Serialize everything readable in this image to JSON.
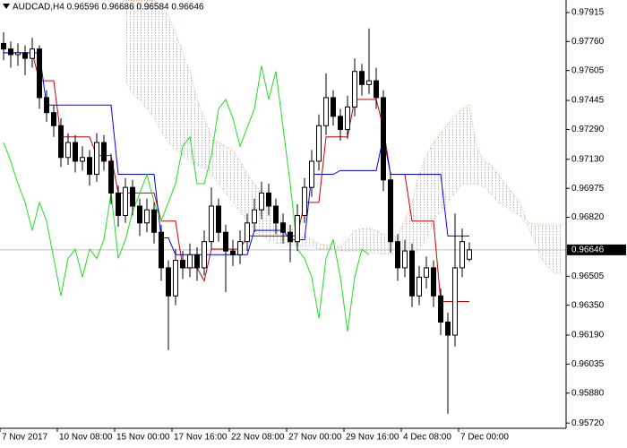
{
  "chart_data": {
    "type": "candlestick",
    "title": "AUDCAD,H4  0.96596 0.96686 0.96584 0.96646",
    "ylim": [
      0.95692,
      0.97982
    ],
    "yticks": [
      {
        "value": 0.97915,
        "label": "0.97915"
      },
      {
        "value": 0.9776,
        "label": "0.97760"
      },
      0.97605,
      0.97445,
      {
        "value": 0.9729,
        "label": "0.97290"
      },
      {
        "value": 0.9713,
        "label": "0.97130"
      },
      0.96975,
      {
        "value": 0.9682,
        "label": "0.96820"
      },
      0.96505,
      {
        "value": 0.9635,
        "label": "0.96350"
      },
      {
        "value": 0.9619,
        "label": "0.96190"
      },
      0.96035,
      {
        "value": 0.9588,
        "label": "0.95880"
      },
      {
        "value": 0.9572,
        "label": "0.95720"
      }
    ],
    "xticks": [
      {
        "value": 0,
        "label": "7 Nov 2017"
      },
      {
        "value": 8,
        "label": "10 Nov 08:00"
      },
      {
        "value": 16,
        "label": "15 Nov 00:00"
      },
      {
        "value": 24,
        "label": "17 Nov 16:00"
      },
      {
        "value": 32,
        "label": "22 Nov 08:00"
      },
      {
        "value": 40,
        "label": "27 Nov 00:00"
      },
      {
        "value": 48,
        "label": "29 Nov 16:00"
      },
      {
        "value": 56,
        "label": "4 Dec 08:00"
      },
      {
        "value": 64,
        "label": "7 Dec 00:00"
      }
    ],
    "current_price": 0.96646,
    "grid": false,
    "candle_up_color": "#ffffff",
    "candle_down_color": "#000000",
    "open": [
      0.9775,
      0.9772,
      0.9769,
      0.977,
      0.9767,
      0.9772,
      0.9746,
      0.9738,
      0.9731,
      0.9714,
      0.9722,
      0.9712,
      0.9714,
      0.9705,
      0.9722,
      0.9712,
      0.9695,
      0.9683,
      0.9698,
      0.9688,
      0.9679,
      0.9686,
      0.9674,
      0.9655,
      0.964,
      0.9659,
      0.9655,
      0.9662,
      0.9655,
      0.9669,
      0.9688,
      0.9674,
      0.9664,
      0.9662,
      0.9669,
      0.9679,
      0.9686,
      0.9695,
      0.9688,
      0.9679,
      0.9674,
      0.9669,
      0.9683,
      0.9698,
      0.9712,
      0.9731,
      0.9746,
      0.9736,
      0.9729,
      0.9741,
      0.976,
      0.9753,
      0.9755,
      0.9746,
      0.9702,
      0.9669,
      0.9655,
      0.9664,
      0.964,
      0.965,
      0.9655,
      0.964,
      0.9626,
      0.9619,
      0.9655,
      0.96596
    ],
    "high": [
      0.9781,
      0.9776,
      0.9775,
      0.9774,
      0.9778,
      0.9774,
      0.975,
      0.9742,
      0.9735,
      0.9727,
      0.9726,
      0.972,
      0.9718,
      0.9727,
      0.9726,
      0.9716,
      0.9699,
      0.9703,
      0.9702,
      0.9692,
      0.9692,
      0.969,
      0.9678,
      0.9659,
      0.9665,
      0.9664,
      0.9668,
      0.9666,
      0.9675,
      0.9698,
      0.9692,
      0.9678,
      0.967,
      0.9675,
      0.9684,
      0.9692,
      0.9701,
      0.97,
      0.9692,
      0.9684,
      0.9678,
      0.9689,
      0.9703,
      0.9718,
      0.9737,
      0.9759,
      0.975,
      0.974,
      0.9747,
      0.9767,
      0.9764,
      0.9783,
      0.9762,
      0.975,
      0.9706,
      0.9673,
      0.967,
      0.9668,
      0.9656,
      0.9661,
      0.9659,
      0.9644,
      0.9631,
      0.9684,
      0.9676,
      0.96686
    ],
    "low": [
      0.9766,
      0.9762,
      0.9763,
      0.9758,
      0.9762,
      0.974,
      0.9733,
      0.9725,
      0.9709,
      0.971,
      0.9706,
      0.9707,
      0.9699,
      0.9701,
      0.9707,
      0.9689,
      0.9677,
      0.9679,
      0.9683,
      0.9672,
      0.9674,
      0.9668,
      0.9648,
      0.9611,
      0.9635,
      0.9649,
      0.965,
      0.9648,
      0.9651,
      0.9665,
      0.9669,
      0.9642,
      0.9656,
      0.9657,
      0.9664,
      0.9674,
      0.9681,
      0.9683,
      0.9673,
      0.9668,
      0.9658,
      0.9664,
      0.9679,
      0.9693,
      0.9707,
      0.9726,
      0.9731,
      0.9723,
      0.9724,
      0.9736,
      0.9747,
      0.9748,
      0.974,
      0.9696,
      0.9663,
      0.9648,
      0.965,
      0.9634,
      0.9635,
      0.9644,
      0.9634,
      0.9619,
      0.9577,
      0.9613,
      0.965,
      0.96584
    ],
    "close": [
      0.9772,
      0.9769,
      0.977,
      0.9767,
      0.9772,
      0.9746,
      0.9738,
      0.9731,
      0.9714,
      0.9722,
      0.9712,
      0.9714,
      0.9705,
      0.9722,
      0.9712,
      0.9695,
      0.9683,
      0.9698,
      0.9688,
      0.9679,
      0.9686,
      0.9674,
      0.9655,
      0.964,
      0.9659,
      0.9655,
      0.9662,
      0.9655,
      0.9669,
      0.9688,
      0.9674,
      0.9664,
      0.9662,
      0.9669,
      0.9679,
      0.9686,
      0.9695,
      0.9688,
      0.9679,
      0.9674,
      0.9669,
      0.9683,
      0.9698,
      0.9712,
      0.9731,
      0.9746,
      0.9736,
      0.9729,
      0.9741,
      0.976,
      0.9753,
      0.9755,
      0.9746,
      0.9702,
      0.9669,
      0.9655,
      0.9664,
      0.964,
      0.965,
      0.9655,
      0.964,
      0.9626,
      0.9619,
      0.9655,
      0.9669,
      0.96646
    ],
    "lines": [
      {
        "color": "#cc0000",
        "values": [
          0.977,
          0.977,
          0.977,
          0.977,
          0.977,
          0.9755,
          0.9755,
          0.9755,
          0.9725,
          0.9725,
          0.9725,
          0.9725,
          0.9725,
          0.9715,
          0.9715,
          0.9715,
          0.9695,
          0.9695,
          0.9695,
          0.9695,
          0.9695,
          0.9695,
          0.968,
          0.968,
          0.968,
          0.9655,
          0.9655,
          0.9655,
          0.9648,
          0.9665,
          0.9665,
          0.9665,
          0.9665,
          0.9665,
          0.9672,
          0.9672,
          0.9672,
          0.9672,
          0.9672,
          0.9672,
          0.9672,
          0.9672,
          0.969,
          0.969,
          0.969,
          0.9725,
          0.9725,
          0.9725,
          0.9725,
          0.9745,
          0.9745,
          0.9745,
          0.9745,
          0.973,
          0.9705,
          0.9705,
          0.9705,
          0.968,
          0.968,
          0.968,
          0.968,
          0.9637,
          0.9637,
          0.9637,
          0.9637,
          0.9637
        ]
      },
      {
        "color": "#0000ff",
        "values": [
          0.977,
          0.977,
          0.977,
          0.977,
          0.977,
          0.977,
          0.9742,
          0.9742,
          0.9742,
          0.9742,
          0.9742,
          0.9742,
          0.9742,
          0.9742,
          0.9742,
          0.9742,
          0.9705,
          0.9705,
          0.9705,
          0.9705,
          0.9705,
          0.9705,
          0.9671,
          0.9671,
          0.9662,
          0.9662,
          0.9662,
          0.9662,
          0.9662,
          0.9662,
          0.9662,
          0.9662,
          0.9662,
          0.9662,
          0.9662,
          0.9675,
          0.9675,
          0.9675,
          0.9675,
          0.9675,
          0.967,
          0.967,
          0.967,
          0.9705,
          0.9705,
          0.9705,
          0.9705,
          0.9707,
          0.9707,
          0.9707,
          0.9707,
          0.9707,
          0.9707,
          0.9725,
          0.9705,
          0.9705,
          0.9705,
          0.9705,
          0.9705,
          0.9705,
          0.9705,
          0.9705,
          0.9672,
          0.9672,
          0.9672,
          0.9672
        ]
      },
      {
        "color": "#22dd22",
        "values": [
          0.9722,
          0.9712,
          0.97,
          0.969,
          0.9675,
          0.969,
          0.968,
          0.966,
          0.964,
          0.966,
          0.9665,
          0.965,
          0.9665,
          0.966,
          0.967,
          0.9695,
          0.966,
          0.967,
          0.9685,
          0.9695,
          0.9705,
          0.969,
          0.968,
          0.969,
          0.97,
          0.972,
          0.9725,
          0.97,
          0.97,
          0.9715,
          0.974,
          0.9745,
          0.9735,
          0.972,
          0.973,
          0.974,
          0.9763,
          0.9745,
          0.976,
          0.973,
          0.97,
          0.9665,
          0.966,
          0.965,
          0.9628,
          0.966,
          0.967,
          0.965,
          0.9621,
          0.965,
          0.9665,
          0.9662,
          null,
          null,
          null,
          null,
          null,
          null,
          null,
          null,
          null,
          null,
          null,
          null,
          null,
          null
        ]
      }
    ],
    "cloud_up_color": "#f4a460",
    "cloud_down_color": "#d8bfd8",
    "span_a": [
      null,
      null,
      null,
      null,
      null,
      null,
      null,
      null,
      null,
      null,
      null,
      null,
      null,
      null,
      null,
      null,
      null,
      0.9798,
      0.9798,
      0.9798,
      0.9798,
      0.9798,
      0.9795,
      0.979,
      0.978,
      0.977,
      0.976,
      0.9745,
      0.9735,
      0.9725,
      0.9722,
      0.972,
      0.9718,
      0.9712,
      0.9705,
      0.97,
      0.9695,
      0.969,
      0.9685,
      0.968,
      0.9676,
      0.9674,
      0.9672,
      0.967,
      0.9668,
      0.9667,
      0.9667,
      0.9666,
      0.967,
      0.9675,
      0.9676,
      0.9676,
      0.9675,
      0.9673,
      0.9672,
      0.9672,
      0.968,
      0.969,
      0.9705,
      0.9715,
      0.9722,
      0.9727,
      0.9732,
      0.9736,
      0.974,
      0.9742,
      0.972,
      0.9712,
      0.971,
      0.9705,
      0.97,
      0.9695,
      0.969,
      0.968,
      0.9678,
      0.9678,
      0.9678,
      0.9678,
      0.9678
    ],
    "span_b": [
      null,
      null,
      null,
      null,
      null,
      null,
      null,
      null,
      null,
      null,
      null,
      null,
      null,
      null,
      null,
      null,
      null,
      0.9755,
      0.9748,
      0.9745,
      0.974,
      0.9735,
      0.9728,
      0.9722,
      0.9718,
      0.9715,
      0.9712,
      0.971,
      0.9708,
      0.9705,
      0.97,
      0.9695,
      0.969,
      0.9685,
      0.968,
      0.9675,
      0.9672,
      0.967,
      0.9668,
      0.9668,
      0.9667,
      0.9667,
      0.9666,
      0.9666,
      0.9665,
      0.9665,
      0.9665,
      0.9664,
      0.9664,
      0.9664,
      0.9663,
      0.9663,
      0.9663,
      0.9662,
      0.9662,
      0.9662,
      0.9662,
      0.9662,
      0.9665,
      0.967,
      0.968,
      0.9685,
      0.969,
      0.9695,
      0.97,
      0.97,
      0.97,
      0.9698,
      0.9695,
      0.969,
      0.9688,
      0.9685,
      0.9683,
      0.9679,
      0.967,
      0.966,
      0.9655,
      0.9652,
      0.9652
    ]
  }
}
